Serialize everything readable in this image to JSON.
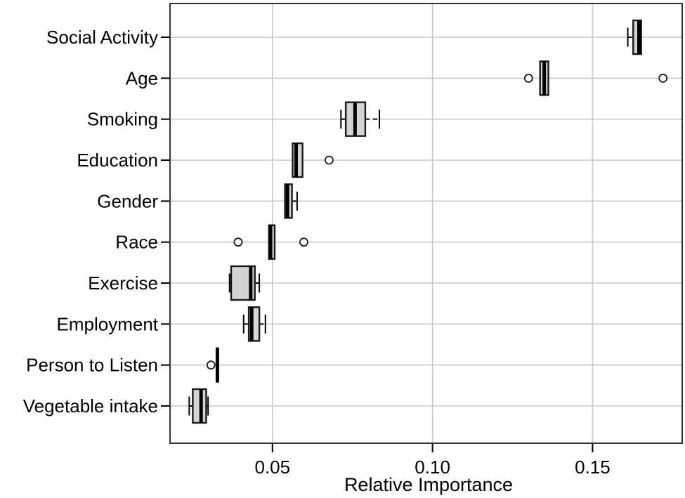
{
  "chart_data": {
    "type": "boxplot",
    "orientation": "horizontal",
    "title": "",
    "xlabel": "Relative Importance",
    "ylabel": "",
    "xlim": [
      0.018,
      0.178
    ],
    "grid": true,
    "legend": "none",
    "xticks": [
      {
        "value": 0.05,
        "label": "0.05"
      },
      {
        "value": 0.1,
        "label": "0.10"
      },
      {
        "value": 0.15,
        "label": "0.15"
      }
    ],
    "categories": [
      "Social Activity",
      "Age",
      "Smoking",
      "Education",
      "Gender",
      "Race",
      "Exercise",
      "Employment",
      "Person to Listen",
      "Vegetable intake"
    ],
    "rows": [
      {
        "label": "Social Activity",
        "whisker_low": 0.161,
        "q1": 0.1627,
        "median": 0.1645,
        "q3": 0.1652,
        "whisker_high": 0.1652,
        "outliers": []
      },
      {
        "label": "Age",
        "whisker_low": 0.1336,
        "q1": 0.1336,
        "median": 0.1349,
        "q3": 0.1362,
        "whisker_high": 0.1362,
        "outliers": [
          0.13,
          0.172
        ]
      },
      {
        "label": "Smoking",
        "whisker_low": 0.0714,
        "q1": 0.0729,
        "median": 0.0758,
        "q3": 0.079,
        "whisker_high": 0.0834,
        "outliers": []
      },
      {
        "label": "Education",
        "whisker_low": 0.0561,
        "q1": 0.0563,
        "median": 0.0574,
        "q3": 0.0594,
        "whisker_high": 0.0596,
        "outliers": [
          0.0677
        ]
      },
      {
        "label": "Gender",
        "whisker_low": 0.0539,
        "q1": 0.0539,
        "median": 0.0547,
        "q3": 0.0561,
        "whisker_high": 0.0577,
        "outliers": []
      },
      {
        "label": "Race",
        "whisker_low": 0.0489,
        "q1": 0.0489,
        "median": 0.0494,
        "q3": 0.0507,
        "whisker_high": 0.0507,
        "outliers": [
          0.0393,
          0.0598
        ]
      },
      {
        "label": "Exercise",
        "whisker_low": 0.0366,
        "q1": 0.0371,
        "median": 0.0432,
        "q3": 0.0445,
        "whisker_high": 0.0459,
        "outliers": []
      },
      {
        "label": "Employment",
        "whisker_low": 0.041,
        "q1": 0.0426,
        "median": 0.0435,
        "q3": 0.0459,
        "whisker_high": 0.0478,
        "outliers": []
      },
      {
        "label": "Person to Listen",
        "whisker_low": 0.0326,
        "q1": 0.0326,
        "median": 0.0328,
        "q3": 0.033,
        "whisker_high": 0.033,
        "outliers": [
          0.0308
        ]
      },
      {
        "label": "Vegetable intake",
        "whisker_low": 0.024,
        "q1": 0.0251,
        "median": 0.0277,
        "q3": 0.0293,
        "whisker_high": 0.0299,
        "outliers": []
      }
    ],
    "colors": {
      "box_fill": "#d4d4d4",
      "box_stroke": "#1a1a1a",
      "median": "#000000",
      "whisker": "#000000",
      "outlier_stroke": "#1a1a1a",
      "outlier_fill": "#ffffff",
      "grid": "#c9c9c9",
      "border": "#333333",
      "background": "#ffffff"
    }
  }
}
